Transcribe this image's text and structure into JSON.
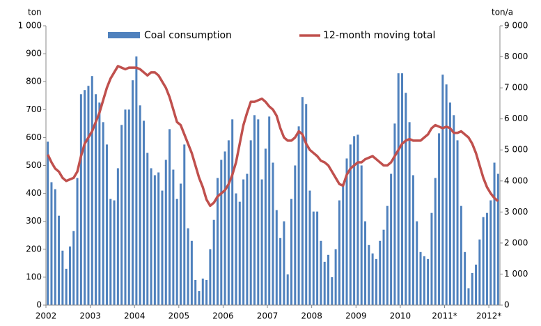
{
  "chart_data": {
    "type": "bar",
    "y_label": "ton",
    "y2_label": "ton/a",
    "categories": [
      "2002",
      null,
      null,
      null,
      null,
      null,
      null,
      null,
      null,
      null,
      null,
      null,
      "2003",
      null,
      null,
      null,
      null,
      null,
      null,
      null,
      null,
      null,
      null,
      null,
      "2004",
      null,
      null,
      null,
      null,
      null,
      null,
      null,
      null,
      null,
      null,
      null,
      "2005",
      null,
      null,
      null,
      null,
      null,
      null,
      null,
      null,
      null,
      null,
      null,
      "2006",
      null,
      null,
      null,
      null,
      null,
      null,
      null,
      null,
      null,
      null,
      null,
      "2007",
      null,
      null,
      null,
      null,
      null,
      null,
      null,
      null,
      null,
      null,
      null,
      "2008",
      null,
      null,
      null,
      null,
      null,
      null,
      null,
      null,
      null,
      null,
      null,
      "2009",
      null,
      null,
      null,
      null,
      null,
      null,
      null,
      null,
      null,
      null,
      null,
      "2010",
      null,
      null,
      null,
      null,
      null,
      null,
      null,
      null,
      null,
      null,
      null,
      "2011*",
      null,
      null,
      null,
      null,
      null,
      null,
      null,
      null,
      null,
      null,
      null,
      "2012*",
      null,
      null
    ],
    "series": [
      {
        "name": "Coal consumption",
        "type": "bar",
        "color": "#4f81bd",
        "values": [
          585,
          440,
          415,
          320,
          195,
          130,
          210,
          265,
          455,
          755,
          770,
          785,
          820,
          755,
          725,
          655,
          575,
          380,
          375,
          490,
          645,
          700,
          700,
          805,
          890,
          715,
          660,
          545,
          490,
          465,
          475,
          410,
          520,
          630,
          485,
          380,
          435,
          575,
          275,
          230,
          90,
          50,
          95,
          90,
          200,
          305,
          455,
          520,
          550,
          590,
          665,
          400,
          370,
          450,
          470,
          590,
          680,
          665,
          450,
          560,
          675,
          510,
          340,
          240,
          300,
          110,
          380,
          500,
          640,
          745,
          720,
          410,
          335,
          335,
          230,
          155,
          180,
          100,
          200,
          375,
          435,
          525,
          575,
          605,
          610,
          500,
          300,
          215,
          185,
          165,
          230,
          270,
          355,
          470,
          650,
          830,
          830,
          760,
          655,
          465,
          300,
          190,
          175,
          165,
          330,
          455,
          615,
          825,
          790,
          725,
          680,
          590,
          355,
          190,
          60,
          115,
          145,
          235,
          315,
          330,
          375,
          510,
          470
        ]
      },
      {
        "name": "12-month moving total",
        "type": "line",
        "axis": "y2",
        "color": "#c0504d",
        "values": [
          4850,
          4600,
          4400,
          4300,
          4100,
          4000,
          4050,
          4100,
          4300,
          4800,
          5200,
          5400,
          5600,
          5900,
          6200,
          6600,
          7000,
          7300,
          7500,
          7700,
          7650,
          7600,
          7650,
          7650,
          7650,
          7600,
          7500,
          7400,
          7500,
          7500,
          7400,
          7200,
          7000,
          6700,
          6300,
          5900,
          5800,
          5500,
          5200,
          4900,
          4500,
          4100,
          3800,
          3400,
          3200,
          3300,
          3500,
          3600,
          3700,
          3900,
          4200,
          4600,
          5200,
          5800,
          6200,
          6550,
          6550,
          6600,
          6650,
          6550,
          6400,
          6300,
          6100,
          5700,
          5400,
          5300,
          5300,
          5400,
          5600,
          5500,
          5200,
          5000,
          4900,
          4800,
          4650,
          4600,
          4500,
          4300,
          4100,
          3900,
          3850,
          4200,
          4400,
          4500,
          4600,
          4600,
          4700,
          4750,
          4800,
          4700,
          4600,
          4500,
          4500,
          4600,
          4800,
          5000,
          5200,
          5300,
          5350,
          5300,
          5300,
          5300,
          5400,
          5500,
          5700,
          5800,
          5750,
          5700,
          5750,
          5700,
          5550,
          5550,
          5600,
          5500,
          5400,
          5200,
          4900,
          4500,
          4100,
          3800,
          3600,
          3450,
          3350
        ]
      }
    ],
    "ylim": [
      0,
      1000
    ],
    "yticks": [
      0,
      100,
      200,
      300,
      400,
      500,
      600,
      700,
      800,
      900,
      {
        "value": 1000,
        "label": "1 000"
      }
    ],
    "y2lim": [
      0,
      9000
    ],
    "y2ticks": [
      0,
      {
        "value": 1000,
        "label": "1 000"
      },
      {
        "value": 2000,
        "label": "2 000"
      },
      {
        "value": 3000,
        "label": "3 000"
      },
      {
        "value": 4000,
        "label": "4 000"
      },
      {
        "value": 5000,
        "label": "5 000"
      },
      {
        "value": 6000,
        "label": "6 000"
      },
      {
        "value": 7000,
        "label": "7 000"
      },
      {
        "value": 8000,
        "label": "8 000"
      },
      {
        "value": 9000,
        "label": "9 000"
      }
    ],
    "grid": false
  }
}
